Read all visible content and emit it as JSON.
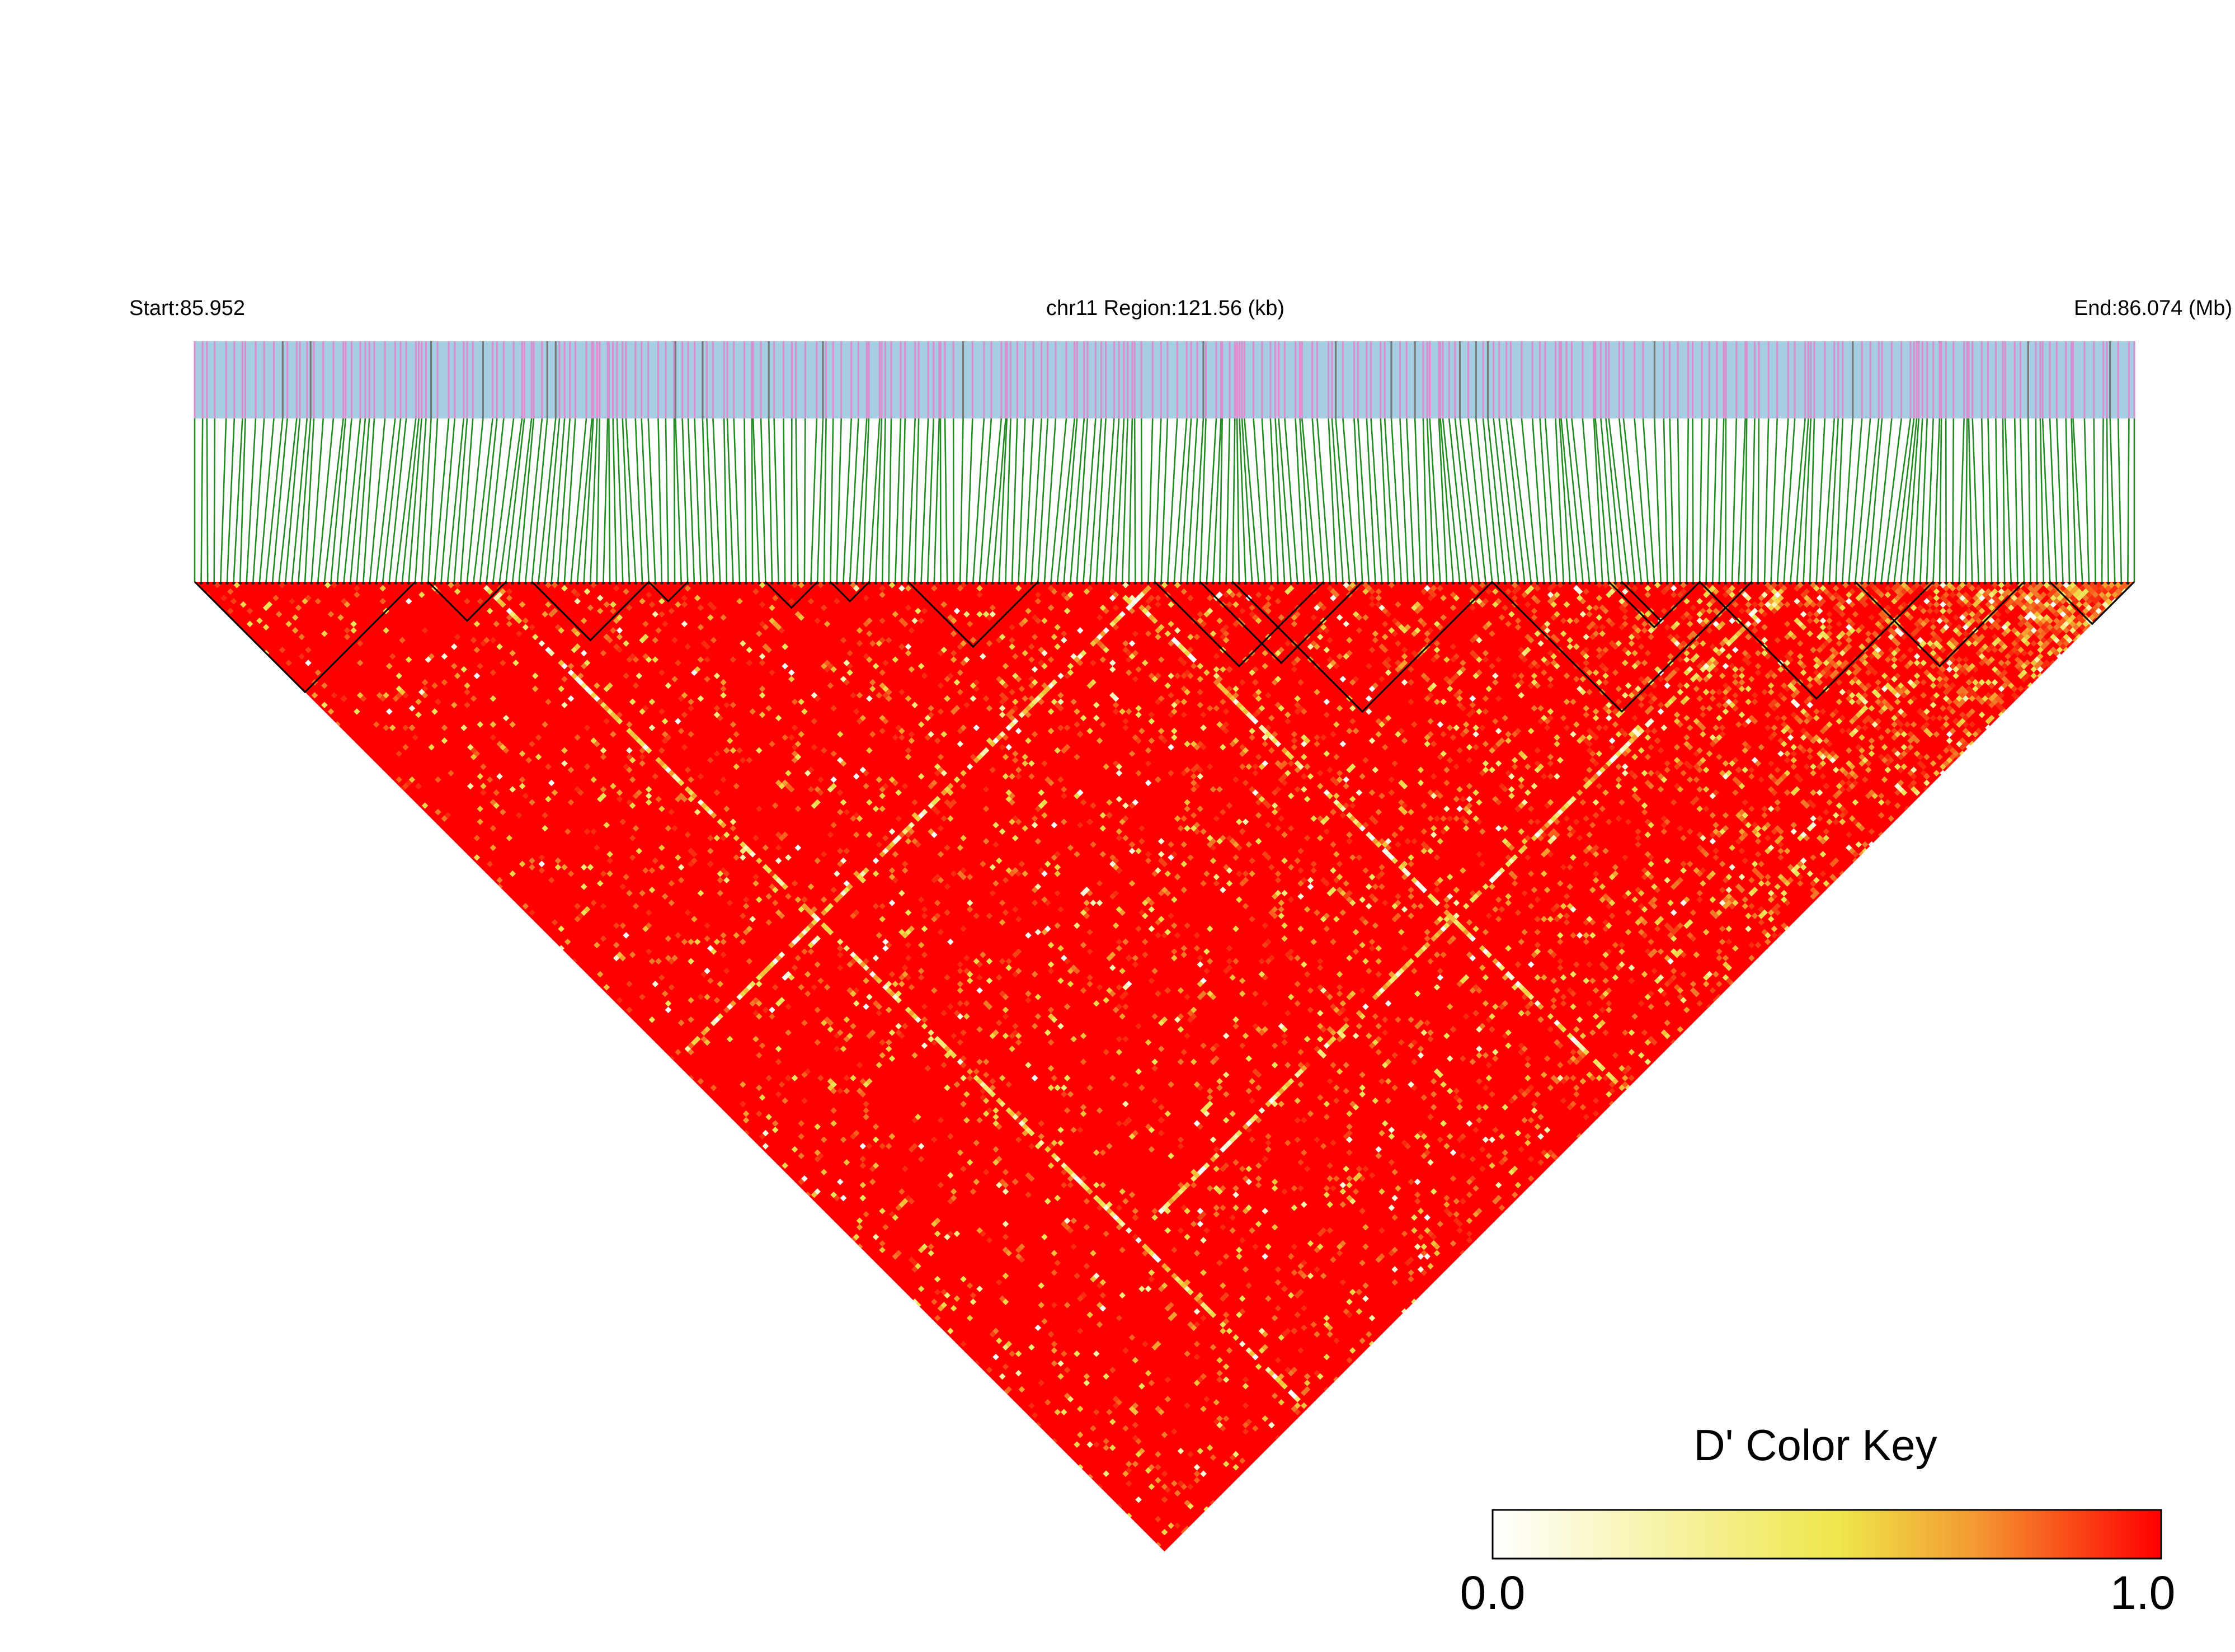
{
  "chart_data": {
    "type": "heatmap",
    "subtype": "LD block triangle (pairwise D')",
    "start_label": "Start:85.952",
    "region_label": "chr11 Region:121.56 (kb)",
    "end_label": "End:86.074 (Mb)",
    "chromosome": "chr11",
    "region_start_mb": 85.952,
    "region_end_mb": 86.074,
    "region_length_kb": 121.56,
    "snp_count": 300,
    "metric": "D'",
    "dominant_value": 1.0,
    "value_range": [
      0.0,
      1.0
    ],
    "low_ld_bands": [
      {
        "snp_i_from": 44,
        "snp_j_from": 46,
        "snp_j_to": 298
      },
      {
        "snp_i_from": 1,
        "snp_i_to": 146,
        "snp_j": 148
      },
      {
        "snp_i_from": 142,
        "snp_j_from": 146,
        "snp_j_to": 298
      },
      {
        "snp_i_from": 50,
        "snp_i_to": 244,
        "snp_j": 246
      }
    ],
    "ld_blocks": [
      {
        "from_snp": 0,
        "to_snp": 34
      },
      {
        "from_snp": 36,
        "to_snp": 48
      },
      {
        "from_snp": 52,
        "to_snp": 70
      },
      {
        "from_snp": 70,
        "to_snp": 76
      },
      {
        "from_snp": 88,
        "to_snp": 96
      },
      {
        "from_snp": 98,
        "to_snp": 104
      },
      {
        "from_snp": 110,
        "to_snp": 130
      },
      {
        "from_snp": 148,
        "to_snp": 174
      },
      {
        "from_snp": 155,
        "to_snp": 180
      },
      {
        "from_snp": 160,
        "to_snp": 200
      },
      {
        "from_snp": 200,
        "to_snp": 240
      },
      {
        "from_snp": 220,
        "to_snp": 232
      },
      {
        "from_snp": 218,
        "to_snp": 232
      },
      {
        "from_snp": 232,
        "to_snp": 268
      },
      {
        "from_snp": 256,
        "to_snp": 282
      },
      {
        "from_snp": 286,
        "to_snp": 299
      }
    ],
    "color_key": {
      "title": "D' Color Key",
      "min_label": "0.0",
      "max_label": "1.0",
      "colors": [
        "#ffffff",
        "#f3ee4c",
        "#ff0000"
      ]
    }
  },
  "colors": {
    "gene_track_bg": "#a6cee3",
    "snp_tick": "#d98fcf",
    "snp_tick_dark": "#777777",
    "connector": "#228b22",
    "high_ld": "#ff0000",
    "block_outline": "#000000"
  }
}
